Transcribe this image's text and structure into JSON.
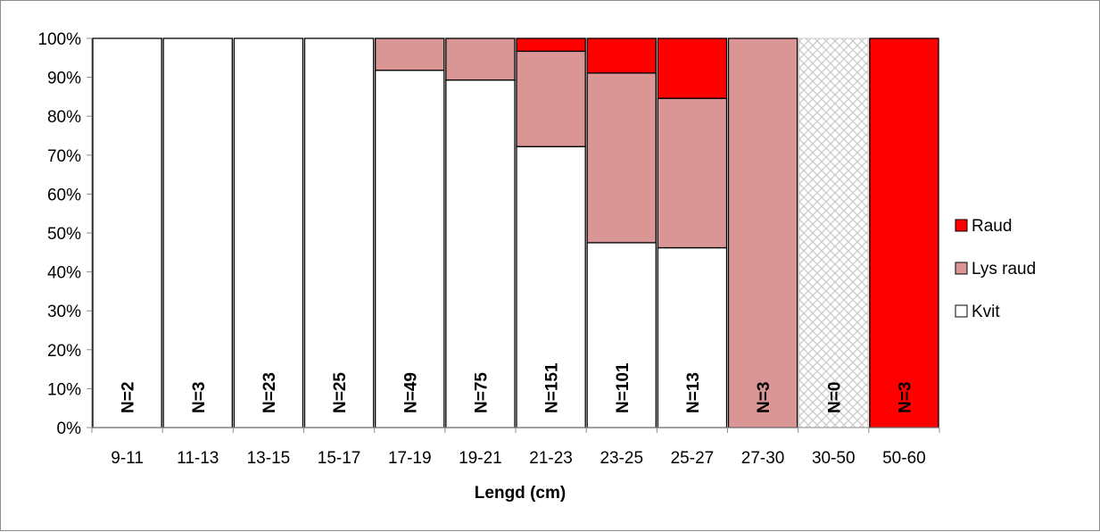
{
  "chart_data": {
    "type": "bar",
    "stacked": true,
    "percent": true,
    "xlabel": "Lengd (cm)",
    "ylabel": "",
    "ylim": [
      0,
      100
    ],
    "yticks": [
      "0%",
      "10%",
      "20%",
      "30%",
      "40%",
      "50%",
      "60%",
      "70%",
      "80%",
      "90%",
      "100%"
    ],
    "categories": [
      "9-11",
      "11-13",
      "13-15",
      "15-17",
      "17-19",
      "19-21",
      "21-23",
      "23-25",
      "25-27",
      "27-30",
      "30-50",
      "50-60"
    ],
    "n_labels": [
      "N=2",
      "N=3",
      "N=23",
      "N=25",
      "N=49",
      "N=75",
      "N=151",
      "N=101",
      "N=13",
      "N=3",
      "N=0",
      "N=3"
    ],
    "no_data_pattern": [
      false,
      false,
      false,
      false,
      false,
      false,
      false,
      false,
      false,
      false,
      true,
      false
    ],
    "series": [
      {
        "name": "Kvit",
        "color": "#ffffff",
        "values": [
          100,
          100,
          100,
          100,
          91.8,
          89.3,
          72.2,
          47.5,
          46.2,
          0,
          0,
          0
        ]
      },
      {
        "name": "Lys raud",
        "color": "#d99694",
        "values": [
          0,
          0,
          0,
          0,
          8.2,
          10.7,
          24.5,
          43.6,
          38.4,
          100,
          0,
          0
        ]
      },
      {
        "name": "Raud",
        "color": "#ff0000",
        "values": [
          0,
          0,
          0,
          0,
          0,
          0,
          3.3,
          8.9,
          15.4,
          0,
          0,
          100
        ]
      }
    ],
    "legend": {
      "placement": "right",
      "entries": [
        "Raud",
        "Lys raud",
        "Kvit"
      ]
    },
    "grid": false
  }
}
